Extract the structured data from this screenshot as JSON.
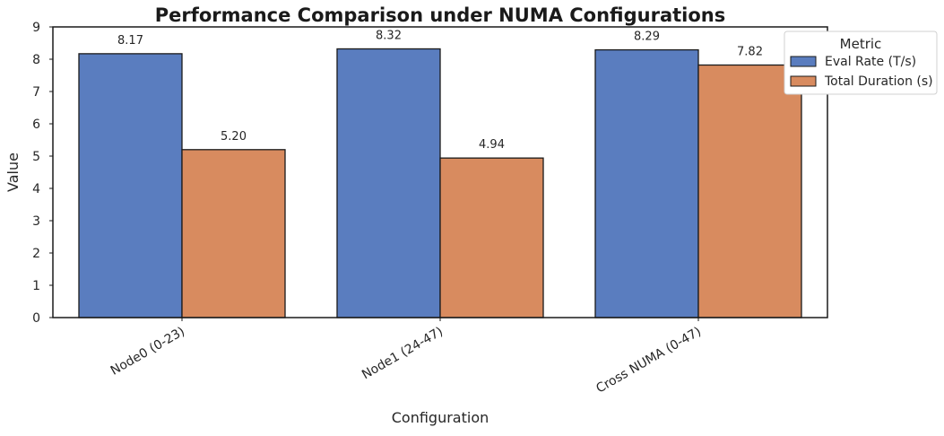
{
  "chart_data": {
    "type": "bar",
    "title": "Performance Comparison under NUMA Configurations",
    "xlabel": "Configuration",
    "ylabel": "Value",
    "categories": [
      "Node0 (0-23)",
      "Node1 (24-47)",
      "Cross NUMA (0-47)"
    ],
    "series": [
      {
        "name": "Eval Rate (T/s)",
        "values": [
          8.17,
          8.32,
          8.29
        ],
        "labels": [
          "8.17",
          "8.32",
          "8.29"
        ],
        "color": "#5a7dbf"
      },
      {
        "name": "Total Duration (s)",
        "values": [
          5.2,
          4.94,
          7.82
        ],
        "labels": [
          "5.20",
          "4.94",
          "7.82"
        ],
        "color": "#d88b5f"
      }
    ],
    "ylim": [
      0,
      9
    ],
    "yticks": [
      "0",
      "1",
      "2",
      "3",
      "4",
      "5",
      "6",
      "7",
      "8",
      "9"
    ],
    "grid": false,
    "legend": {
      "title": "Metric",
      "placement": "top-right"
    }
  }
}
